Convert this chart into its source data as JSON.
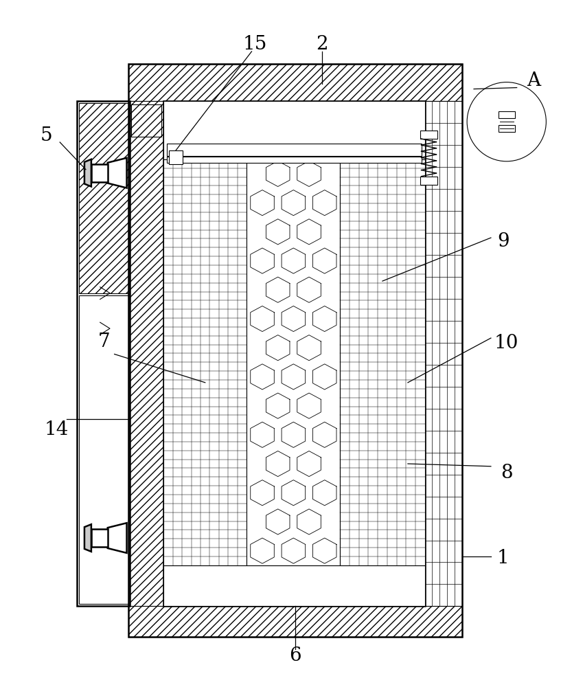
{
  "bg_color": "#ffffff",
  "line_color": "#000000",
  "fig_width": 8.17,
  "fig_height": 10.0,
  "dpi": 100,
  "font_size": 20
}
